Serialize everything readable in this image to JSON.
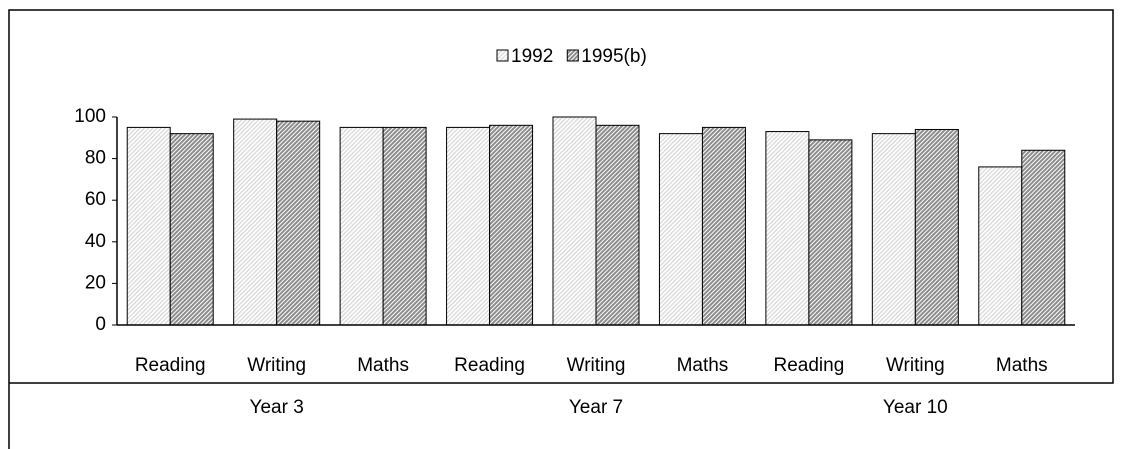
{
  "chart_data": {
    "type": "bar",
    "categories": [
      "Reading",
      "Writing",
      "Maths",
      "Reading",
      "Writing",
      "Maths",
      "Reading",
      "Writing",
      "Maths"
    ],
    "groups": [
      "Year 3",
      "Year 7",
      "Year 10"
    ],
    "series": [
      {
        "name": "1992",
        "color": "#d8d8d8",
        "values": [
          95,
          99,
          95,
          95,
          100,
          92,
          93,
          92,
          76
        ]
      },
      {
        "name": "1995(b)",
        "color": "#8c8c8c",
        "values": [
          92,
          98,
          95,
          96,
          96,
          95,
          89,
          94,
          84
        ]
      }
    ],
    "ylim": [
      0,
      100
    ],
    "yticks": [
      0,
      20,
      40,
      60,
      80,
      100
    ],
    "grid": false,
    "legend": "top"
  }
}
